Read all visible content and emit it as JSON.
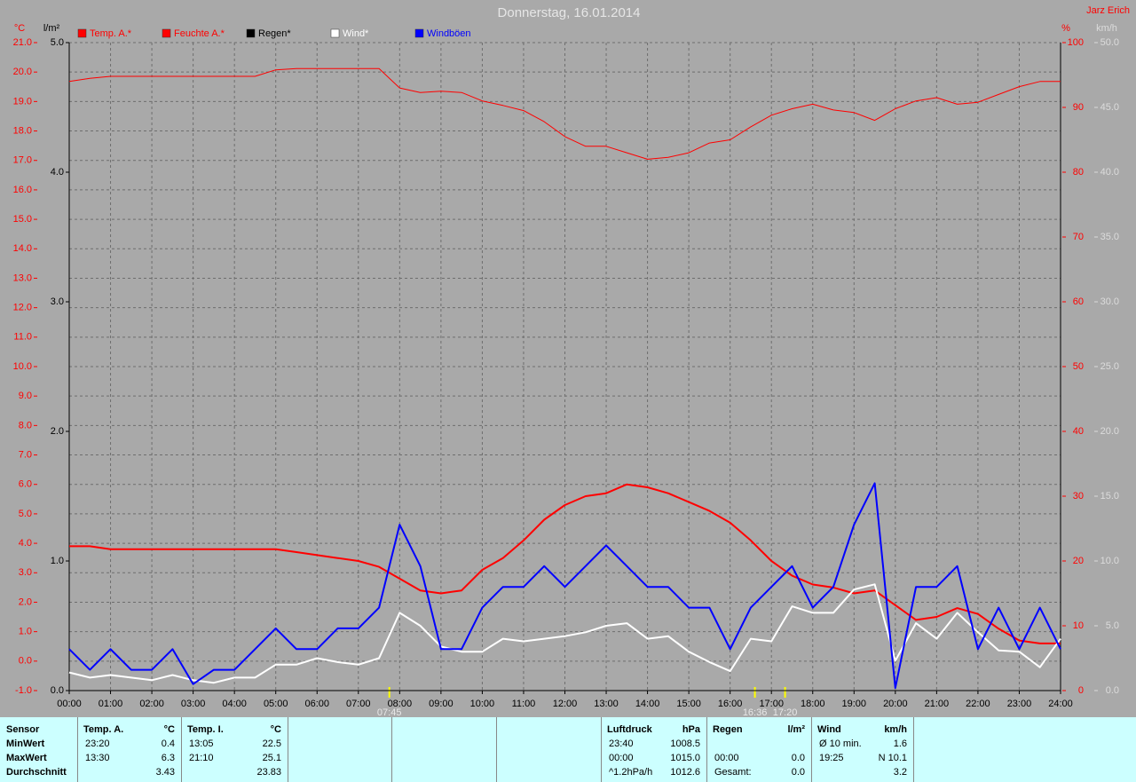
{
  "chart_data": {
    "type": "line",
    "title": "Donnerstag, 16.01.2014",
    "author": "Jarz Erich",
    "grid": true,
    "xlim": [
      0,
      24
    ],
    "xticks": [
      {
        "value": 0,
        "label": "00:00"
      },
      {
        "value": 1,
        "label": "01:00"
      },
      {
        "value": 2,
        "label": "02:00"
      },
      {
        "value": 3,
        "label": "03:00"
      },
      {
        "value": 4,
        "label": "04:00"
      },
      {
        "value": 5,
        "label": "05:00"
      },
      {
        "value": 6,
        "label": "06:00"
      },
      {
        "value": 7,
        "label": "07:00"
      },
      {
        "value": 8,
        "label": "08:00"
      },
      {
        "value": 9,
        "label": "09:00"
      },
      {
        "value": 10,
        "label": "10:00"
      },
      {
        "value": 11,
        "label": "11:00"
      },
      {
        "value": 12,
        "label": "12:00"
      },
      {
        "value": 13,
        "label": "13:00"
      },
      {
        "value": 14,
        "label": "14:00"
      },
      {
        "value": 15,
        "label": "15:00"
      },
      {
        "value": 16,
        "label": "16:00"
      },
      {
        "value": 17,
        "label": "17:00"
      },
      {
        "value": 18,
        "label": "18:00"
      },
      {
        "value": 19,
        "label": "19:00"
      },
      {
        "value": 20,
        "label": "20:00"
      },
      {
        "value": 21,
        "label": "21:00"
      },
      {
        "value": 22,
        "label": "22:00"
      },
      {
        "value": 23,
        "label": "23:00"
      },
      {
        "value": 24,
        "label": "24:00"
      }
    ],
    "axes": [
      {
        "unit": "°C",
        "color": "#ff0000",
        "lim": [
          -1,
          21
        ],
        "ticks": [
          {
            "value": -1,
            "label": "-1.0"
          },
          {
            "value": 0,
            "label": "0.0"
          },
          {
            "value": 1,
            "label": "1.0"
          },
          {
            "value": 2,
            "label": "2.0"
          },
          {
            "value": 3,
            "label": "3.0"
          },
          {
            "value": 4,
            "label": "4.0"
          },
          {
            "value": 5,
            "label": "5.0"
          },
          {
            "value": 6,
            "label": "6.0"
          },
          {
            "value": 7,
            "label": "7.0"
          },
          {
            "value": 8,
            "label": "8.0"
          },
          {
            "value": 9,
            "label": "9.0"
          },
          {
            "value": 10,
            "label": "10.0"
          },
          {
            "value": 11,
            "label": "11.0"
          },
          {
            "value": 12,
            "label": "12.0"
          },
          {
            "value": 13,
            "label": "13.0"
          },
          {
            "value": 14,
            "label": "14.0"
          },
          {
            "value": 15,
            "label": "15.0"
          },
          {
            "value": 16,
            "label": "16.0"
          },
          {
            "value": 17,
            "label": "17.0"
          },
          {
            "value": 18,
            "label": "18.0"
          },
          {
            "value": 19,
            "label": "19.0"
          },
          {
            "value": 20,
            "label": "20.0"
          },
          {
            "value": 21,
            "label": "21.0"
          }
        ]
      },
      {
        "unit": "l/m²",
        "color": "#000000",
        "lim": [
          0,
          5
        ],
        "ticks": [
          {
            "value": 0,
            "label": "0.0"
          },
          {
            "value": 1,
            "label": "1.0"
          },
          {
            "value": 2,
            "label": "2.0"
          },
          {
            "value": 3,
            "label": "3.0"
          },
          {
            "value": 4,
            "label": "4.0"
          },
          {
            "value": 5,
            "label": "5.0"
          }
        ]
      },
      {
        "unit": "%",
        "color": "#ff0000",
        "lim": [
          0,
          100
        ],
        "ticks": [
          0,
          10,
          20,
          30,
          40,
          50,
          60,
          70,
          80,
          90,
          100
        ]
      },
      {
        "unit": "km/h",
        "color": "#dcdcdc",
        "lim": [
          0,
          50
        ],
        "ticks": [
          {
            "value": 0,
            "label": "0.0"
          },
          {
            "value": 5,
            "label": "5.0"
          },
          {
            "value": 10,
            "label": "10.0"
          },
          {
            "value": 15,
            "label": "15.0"
          },
          {
            "value": 20,
            "label": "20.0"
          },
          {
            "value": 25,
            "label": "25.0"
          },
          {
            "value": 30,
            "label": "30.0"
          },
          {
            "value": 35,
            "label": "35.0"
          },
          {
            "value": 40,
            "label": "40.0"
          },
          {
            "value": 45,
            "label": "45.0"
          },
          {
            "value": 50,
            "label": "50.0"
          }
        ]
      }
    ],
    "x": [
      0,
      0.5,
      1,
      1.5,
      2,
      2.5,
      3,
      3.5,
      4,
      4.5,
      5,
      5.5,
      6,
      6.5,
      7,
      7.5,
      8,
      8.5,
      9,
      9.5,
      10,
      10.5,
      11,
      11.5,
      12,
      12.5,
      13,
      13.5,
      14,
      14.5,
      15,
      15.5,
      16,
      16.5,
      17,
      17.5,
      18,
      18.5,
      19,
      19.5,
      20,
      20.5,
      21,
      21.5,
      22,
      22.5,
      23,
      23.5,
      24
    ],
    "series": [
      {
        "name": "Temp. A.*",
        "color": "#ff0000",
        "axis": 0,
        "width": 2,
        "values": [
          3.9,
          3.9,
          3.8,
          3.8,
          3.8,
          3.8,
          3.8,
          3.8,
          3.8,
          3.8,
          3.8,
          3.7,
          3.6,
          3.5,
          3.4,
          3.2,
          2.8,
          2.4,
          2.3,
          2.4,
          3.1,
          3.5,
          4.1,
          4.8,
          5.3,
          5.6,
          5.7,
          6.0,
          5.9,
          5.7,
          5.4,
          5.1,
          4.7,
          4.1,
          3.4,
          2.9,
          2.6,
          2.5,
          2.3,
          2.4,
          1.9,
          1.4,
          1.5,
          1.8,
          1.6,
          1.1,
          0.7,
          0.6,
          0.6
        ]
      },
      {
        "name": "Feuchte A.*",
        "color": "#ff0000",
        "axis": 2,
        "width": 1,
        "values": [
          94,
          94.5,
          94.8,
          94.8,
          94.8,
          94.8,
          94.8,
          94.8,
          94.8,
          94.8,
          95.8,
          96,
          96,
          96,
          96,
          96,
          93,
          92.3,
          92.5,
          92.3,
          91,
          90.3,
          89.5,
          87.8,
          85.5,
          84,
          84,
          83,
          82,
          82.3,
          83,
          84.5,
          85,
          87,
          88.8,
          89.8,
          90.5,
          89.6,
          89.2,
          88,
          89.8,
          91,
          91.5,
          90.5,
          90.8,
          92,
          93.2,
          94,
          94
        ]
      },
      {
        "name": "Regen*",
        "color": "#000000",
        "axis": 1,
        "width": 1,
        "values": [
          0,
          0,
          0,
          0,
          0,
          0,
          0,
          0,
          0,
          0,
          0,
          0,
          0,
          0,
          0,
          0,
          0,
          0,
          0,
          0,
          0,
          0,
          0,
          0,
          0,
          0,
          0,
          0,
          0,
          0,
          0,
          0,
          0,
          0,
          0,
          0,
          0,
          0,
          0,
          0,
          0,
          0,
          0,
          0,
          0,
          0,
          0,
          0,
          0
        ]
      },
      {
        "name": "Wind*",
        "color": "#ffffff",
        "axis": 3,
        "width": 2,
        "values": [
          1.4,
          1,
          1.2,
          1,
          0.8,
          1.2,
          0.8,
          0.6,
          1,
          1,
          2,
          2,
          2.5,
          2.2,
          2,
          2.5,
          6,
          5,
          3.4,
          3,
          3,
          4,
          3.8,
          4,
          4.2,
          4.5,
          5,
          5.2,
          4,
          4.2,
          3,
          2.2,
          1.5,
          4,
          3.8,
          6.5,
          6,
          6,
          7.8,
          8.2,
          2.3,
          5.2,
          4,
          6,
          4.5,
          3.1,
          3,
          1.8,
          4
        ]
      },
      {
        "name": "Windböen",
        "color": "#0000ff",
        "axis": 3,
        "width": 2,
        "values": [
          3.2,
          1.6,
          3.2,
          1.6,
          1.6,
          3.2,
          0.5,
          1.6,
          1.6,
          3.2,
          4.8,
          3.2,
          3.2,
          4.8,
          4.8,
          6.4,
          12.8,
          9.6,
          3.2,
          3.2,
          6.4,
          8,
          8,
          9.6,
          8,
          9.6,
          11.2,
          9.6,
          8,
          8,
          6.4,
          6.4,
          3.2,
          6.4,
          8,
          9.6,
          6.4,
          8,
          12.8,
          16,
          0.2,
          8,
          8,
          9.6,
          3.2,
          6.4,
          3.2,
          6.4,
          3.2
        ]
      }
    ],
    "markers": [
      {
        "x": 7.75,
        "label": "07:45"
      },
      {
        "x": 16.6,
        "label": "16:36"
      },
      {
        "x": 17.33,
        "label": "17:20"
      }
    ]
  },
  "table": {
    "sensor_header": "Sensor",
    "row_labels": [
      "MinWert",
      "MaxWert",
      "Durchschnitt"
    ],
    "groups": [
      {
        "header": [
          "Temp. A.",
          "°C"
        ],
        "rows": [
          [
            "23:20",
            "0.4"
          ],
          [
            "13:30",
            "6.3"
          ],
          [
            null,
            "3.43"
          ]
        ]
      },
      {
        "header": [
          "Temp. I.",
          "°C"
        ],
        "rows": [
          [
            "13:05",
            "22.5"
          ],
          [
            "21:10",
            "25.1"
          ],
          [
            null,
            "23.83"
          ]
        ]
      },
      {
        "header": [
          "Luftdruck",
          "hPa"
        ],
        "rows": [
          [
            "23:40",
            "1008.5"
          ],
          [
            "00:00",
            "1015.0"
          ],
          [
            "^1.2hPa/h",
            "1012.6"
          ]
        ]
      },
      {
        "header": [
          "Regen",
          "l/m²"
        ],
        "rows": [
          [
            null,
            null
          ],
          [
            "00:00",
            "0.0"
          ],
          [
            "Gesamt:",
            "0.0"
          ]
        ]
      },
      {
        "header": [
          "Wind",
          "km/h"
        ],
        "rows": [
          [
            "Ø 10 min.",
            "1.6"
          ],
          [
            "19:25",
            "N 10.1"
          ],
          [
            null,
            "3.2"
          ]
        ]
      }
    ]
  }
}
